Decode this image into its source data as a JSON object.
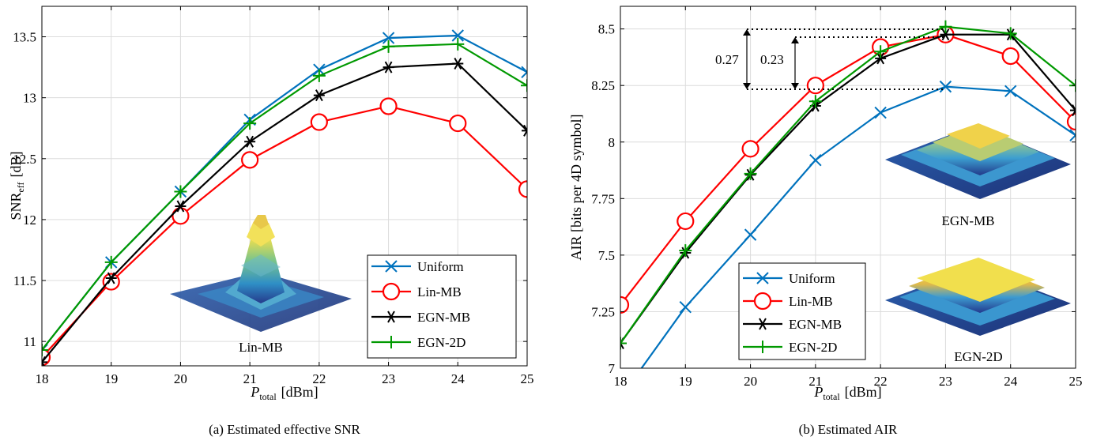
{
  "colors": {
    "uniform": "#0072BD",
    "lin_mb": "#FF0000",
    "egn_mb": "#000000",
    "egn_2d": "#009900"
  },
  "chart_data": [
    {
      "type": "line",
      "caption": "(a) Estimated effective SNR",
      "xlabel_main": "P",
      "xlabel_sub": "total",
      "xlabel_unit": "[dBm]",
      "ylabel_main": "SNR",
      "ylabel_sub": "eff",
      "ylabel_unit": "[dB]",
      "x": [
        18,
        19,
        20,
        21,
        22,
        23,
        24,
        25
      ],
      "xlim": [
        18,
        25
      ],
      "ylim": [
        10.8,
        13.75
      ],
      "xticks": [
        18,
        19,
        20,
        21,
        22,
        23,
        24,
        25
      ],
      "yticks": [
        11,
        11.5,
        12,
        12.5,
        13,
        13.5
      ],
      "ytick_labels": [
        "11",
        "11.5",
        "12",
        "12.5",
        "13",
        "13.5"
      ],
      "grid": true,
      "legend_position": "bottom-right",
      "inset_label": "Lin-MB",
      "series": [
        {
          "name": "Uniform",
          "marker": "x",
          "values": [
            10.93,
            11.65,
            12.23,
            12.82,
            13.23,
            13.49,
            13.51,
            13.21
          ]
        },
        {
          "name": "Lin-MB",
          "marker": "o",
          "values": [
            10.87,
            11.49,
            12.03,
            12.49,
            12.8,
            12.93,
            12.79,
            12.25
          ]
        },
        {
          "name": "EGN-MB",
          "marker": "asterisk",
          "values": [
            10.83,
            11.52,
            12.11,
            12.64,
            13.02,
            13.25,
            13.28,
            12.73
          ]
        },
        {
          "name": "EGN-2D",
          "marker": "plus",
          "values": [
            10.93,
            11.65,
            12.23,
            12.79,
            13.18,
            13.42,
            13.44,
            13.1
          ]
        }
      ]
    },
    {
      "type": "line",
      "caption": "(b) Estimated AIR",
      "xlabel_main": "P",
      "xlabel_sub": "total",
      "xlabel_unit": "[dBm]",
      "ylabel": "AIR [bits per 4D symbol]",
      "x": [
        18,
        19,
        20,
        21,
        22,
        23,
        24,
        25
      ],
      "xlim": [
        18,
        25
      ],
      "ylim": [
        7.0,
        8.6
      ],
      "xticks": [
        18,
        19,
        20,
        21,
        22,
        23,
        24,
        25
      ],
      "yticks": [
        7,
        7.25,
        7.5,
        7.75,
        8,
        8.25,
        8.5
      ],
      "ytick_labels": [
        "7",
        "7.25",
        "7.5",
        "7.75",
        "8",
        "8.25",
        "8.5"
      ],
      "grid": true,
      "legend_position": "bottom-left",
      "inset_labels": [
        "EGN-MB",
        "EGN-2D"
      ],
      "annotations": [
        "0.27",
        "0.23"
      ],
      "series": [
        {
          "name": "Uniform",
          "marker": "x",
          "values": [
            6.87,
            7.27,
            7.59,
            7.92,
            8.13,
            8.245,
            8.225,
            8.03
          ]
        },
        {
          "name": "Lin-MB",
          "marker": "o",
          "values": [
            7.28,
            7.65,
            7.97,
            8.25,
            8.42,
            8.475,
            8.38,
            8.09
          ]
        },
        {
          "name": "EGN-MB",
          "marker": "asterisk",
          "values": [
            7.11,
            7.51,
            7.855,
            8.16,
            8.37,
            8.475,
            8.475,
            8.14
          ]
        },
        {
          "name": "EGN-2D",
          "marker": "plus",
          "values": [
            7.11,
            7.52,
            7.86,
            8.18,
            8.4,
            8.51,
            8.48,
            8.25
          ]
        }
      ]
    }
  ]
}
